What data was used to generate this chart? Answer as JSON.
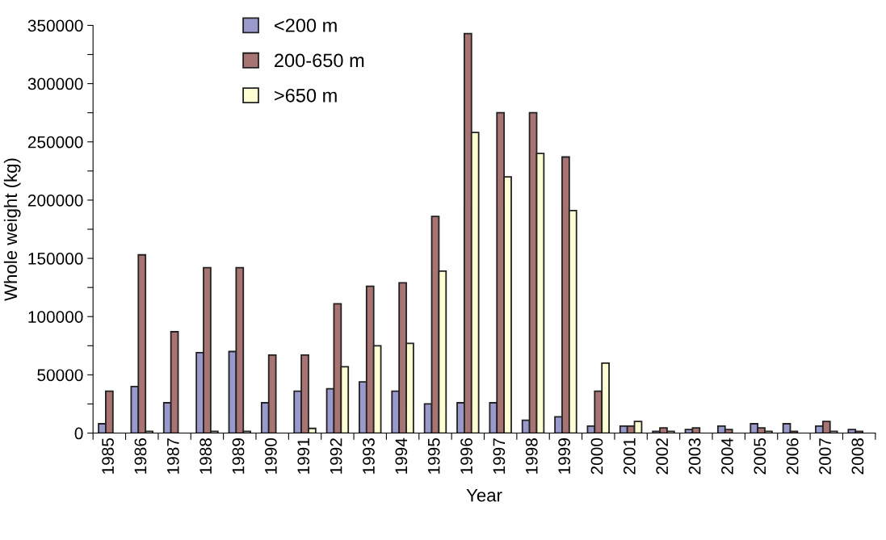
{
  "chart_data": {
    "type": "bar",
    "xlabel": "Year",
    "ylabel": "Whole weight (kg)",
    "categories": [
      "1985",
      "1986",
      "1987",
      "1988",
      "1989",
      "1990",
      "1991",
      "1992",
      "1993",
      "1994",
      "1995",
      "1996",
      "1997",
      "1998",
      "1999",
      "2000",
      "2001",
      "2002",
      "2003",
      "2004",
      "2005",
      "2006",
      "2007",
      "2008"
    ],
    "series": [
      {
        "name": "<200 m",
        "color": "#9999cc",
        "values": [
          8000,
          40000,
          26000,
          69000,
          70000,
          26000,
          36000,
          38000,
          44000,
          36000,
          25000,
          26000,
          26000,
          11000,
          14000,
          6000,
          6000,
          1500,
          3000,
          6000,
          8000,
          8000,
          6000,
          3000
        ]
      },
      {
        "name": "200-650 m",
        "color": "#a87373",
        "values": [
          36000,
          153000,
          87000,
          142000,
          142000,
          67000,
          67000,
          111000,
          126000,
          129000,
          186000,
          343000,
          275000,
          275000,
          237000,
          36000,
          6000,
          4500,
          4500,
          3000,
          4500,
          1500,
          10000,
          1500
        ]
      },
      {
        "name": ">650 m",
        "color": "#ffffd4",
        "values": [
          0,
          1500,
          0,
          1500,
          1500,
          0,
          4000,
          57000,
          75000,
          77000,
          139000,
          258000,
          220000,
          240000,
          191000,
          60000,
          10000,
          1500,
          0,
          0,
          1500,
          0,
          1500,
          0
        ]
      }
    ],
    "ylim": [
      0,
      350000
    ],
    "yticks": [
      0,
      {
        "value": 25000,
        "label": null
      },
      50000,
      {
        "value": 75000,
        "label": null
      },
      100000,
      {
        "value": 125000,
        "label": null
      },
      150000,
      {
        "value": 175000,
        "label": null
      },
      200000,
      {
        "value": 225000,
        "label": null
      },
      250000,
      {
        "value": 275000,
        "label": null
      },
      300000,
      {
        "value": 325000,
        "label": null
      },
      350000
    ],
    "grid": false,
    "legend": "top left"
  }
}
